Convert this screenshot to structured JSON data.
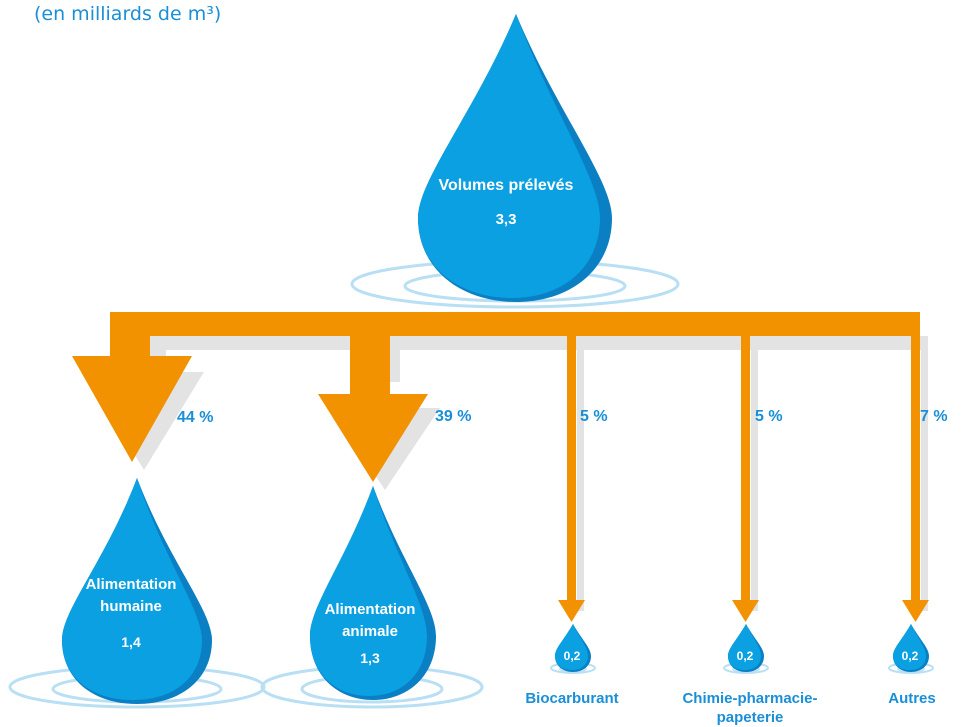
{
  "subtitle": "(en milliards de m³)",
  "colors": {
    "drop": "#0aa0e2",
    "drop_shade": "#0a7fc4",
    "arrow": "#f39200",
    "arrow_shadow": "#e3e3e3",
    "ripple": "#b9dff5",
    "label": "#1a8fd8"
  },
  "source": {
    "title": "Volumes prélevés",
    "value": "3,3"
  },
  "branches": [
    {
      "title_line1": "Alimentation",
      "title_line2": "humaine",
      "value": "1,4",
      "percent": "44 %"
    },
    {
      "title_line1": "Alimentation",
      "title_line2": "animale",
      "value": "1,3",
      "percent": "39 %"
    },
    {
      "label_line1": "Biocarburant",
      "label_line2": "",
      "value": "0,2",
      "percent": "5 %"
    },
    {
      "label_line1": "Chimie-pharmacie-",
      "label_line2": "papeterie",
      "value": "0,2",
      "percent": "5 %"
    },
    {
      "label_line1": "Autres",
      "label_line2": "",
      "value": "0,2",
      "percent": "7 %"
    }
  ]
}
